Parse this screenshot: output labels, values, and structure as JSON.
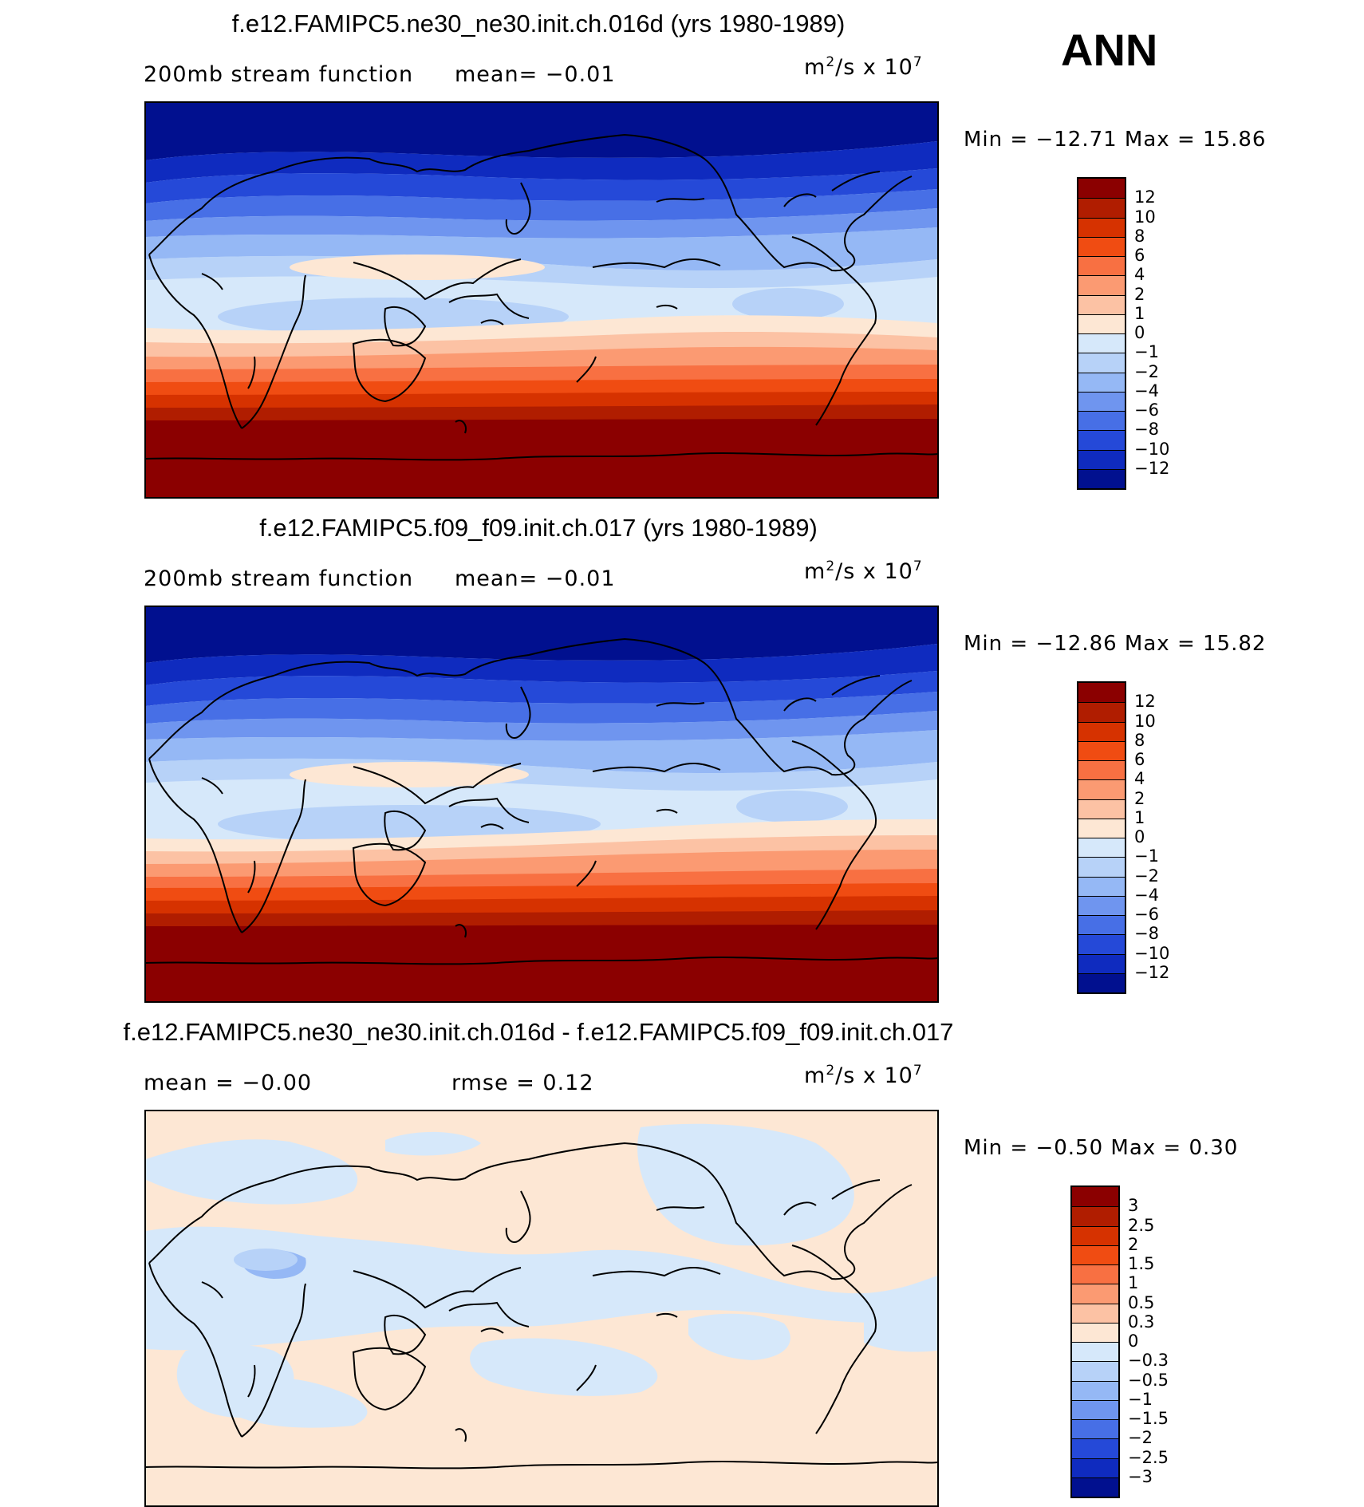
{
  "season": "ANN",
  "panels": [
    {
      "title": "f.e12.FAMIPC5.ne30_ne30.init.ch.016d (yrs 1980-1989)",
      "left_text": "200mb stream function",
      "mid_text": "mean=   −0.01",
      "units_base": "m",
      "units_sup1": "2",
      "units_mid": "/s x 10",
      "units_sup2": "7",
      "minmax": "Min = −12.71 Max =   15.86",
      "colorbar": {
        "colors": [
          "#8b0000",
          "#b01d00",
          "#d63200",
          "#f04c12",
          "#f87042",
          "#fb9a72",
          "#fcc2a4",
          "#fde7d4",
          "#d6e8fa",
          "#b7d2f8",
          "#95b8f5",
          "#6f95ef",
          "#476fe6",
          "#2549d8",
          "#0f2bbf",
          "#01108f"
        ],
        "labels": [
          "12",
          "10",
          "8",
          "6",
          "4",
          "2",
          "1",
          "0",
          "−1",
          "−2",
          "−4",
          "−6",
          "−8",
          "−10",
          "−12"
        ]
      }
    },
    {
      "title": "f.e12.FAMIPC5.f09_f09.init.ch.017 (yrs 1980-1989)",
      "left_text": "200mb stream function",
      "mid_text": "mean=   −0.01",
      "units_base": "m",
      "units_sup1": "2",
      "units_mid": "/s x 10",
      "units_sup2": "7",
      "minmax": "Min = −12.86 Max =   15.82",
      "colorbar": {
        "colors": [
          "#8b0000",
          "#b01d00",
          "#d63200",
          "#f04c12",
          "#f87042",
          "#fb9a72",
          "#fcc2a4",
          "#fde7d4",
          "#d6e8fa",
          "#b7d2f8",
          "#95b8f5",
          "#6f95ef",
          "#476fe6",
          "#2549d8",
          "#0f2bbf",
          "#01108f"
        ],
        "labels": [
          "12",
          "10",
          "8",
          "6",
          "4",
          "2",
          "1",
          "0",
          "−1",
          "−2",
          "−4",
          "−6",
          "−8",
          "−10",
          "−12"
        ]
      }
    },
    {
      "title": "f.e12.FAMIPC5.ne30_ne30.init.ch.016d - f.e12.FAMIPC5.f09_f09.init.ch.017",
      "left_text": "mean =   −0.00",
      "mid_text": "rmse =    0.12",
      "units_base": "m",
      "units_sup1": "2",
      "units_mid": "/s x 10",
      "units_sup2": "7",
      "minmax": "Min =   −0.50 Max =    0.30",
      "colorbar": {
        "colors": [
          "#8b0000",
          "#b01d00",
          "#d63200",
          "#f04c12",
          "#f87042",
          "#fb9a72",
          "#fcc2a4",
          "#fde7d4",
          "#d6e8fa",
          "#b7d2f8",
          "#95b8f5",
          "#6f95ef",
          "#476fe6",
          "#2549d8",
          "#0f2bbf",
          "#01108f"
        ],
        "labels": [
          "3",
          "2.5",
          "2",
          "1.5",
          "1",
          "0.5",
          "0.3",
          "0",
          "−0.3",
          "−0.5",
          "−1",
          "−1.5",
          "−2",
          "−2.5",
          "−3"
        ]
      }
    }
  ]
}
